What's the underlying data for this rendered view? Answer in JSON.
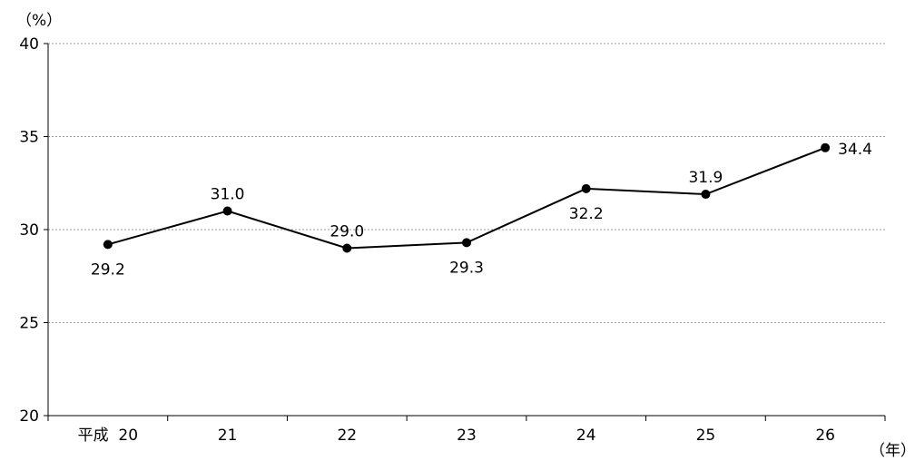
{
  "chart_data": {
    "type": "line",
    "ylabel": "（%）",
    "xlabel": "（年）",
    "categories": [
      "平成  20",
      "21",
      "22",
      "23",
      "24",
      "25",
      "26"
    ],
    "values": [
      29.2,
      31.0,
      29.0,
      29.3,
      32.2,
      31.9,
      34.4
    ],
    "value_labels": [
      "29.2",
      "31.0",
      "29.0",
      "29.3",
      "32.2",
      "31.9",
      "34.4"
    ],
    "label_placement": [
      "below",
      "above",
      "above",
      "below",
      "below",
      "above",
      "right"
    ],
    "ylim": [
      20,
      40
    ],
    "yticks": [
      20,
      25,
      30,
      35,
      40
    ],
    "ytick_labels": [
      "20",
      "25",
      "30",
      "35",
      "40"
    ],
    "grid": true,
    "colors": {
      "line": "#000000",
      "grid": "#999999"
    }
  }
}
